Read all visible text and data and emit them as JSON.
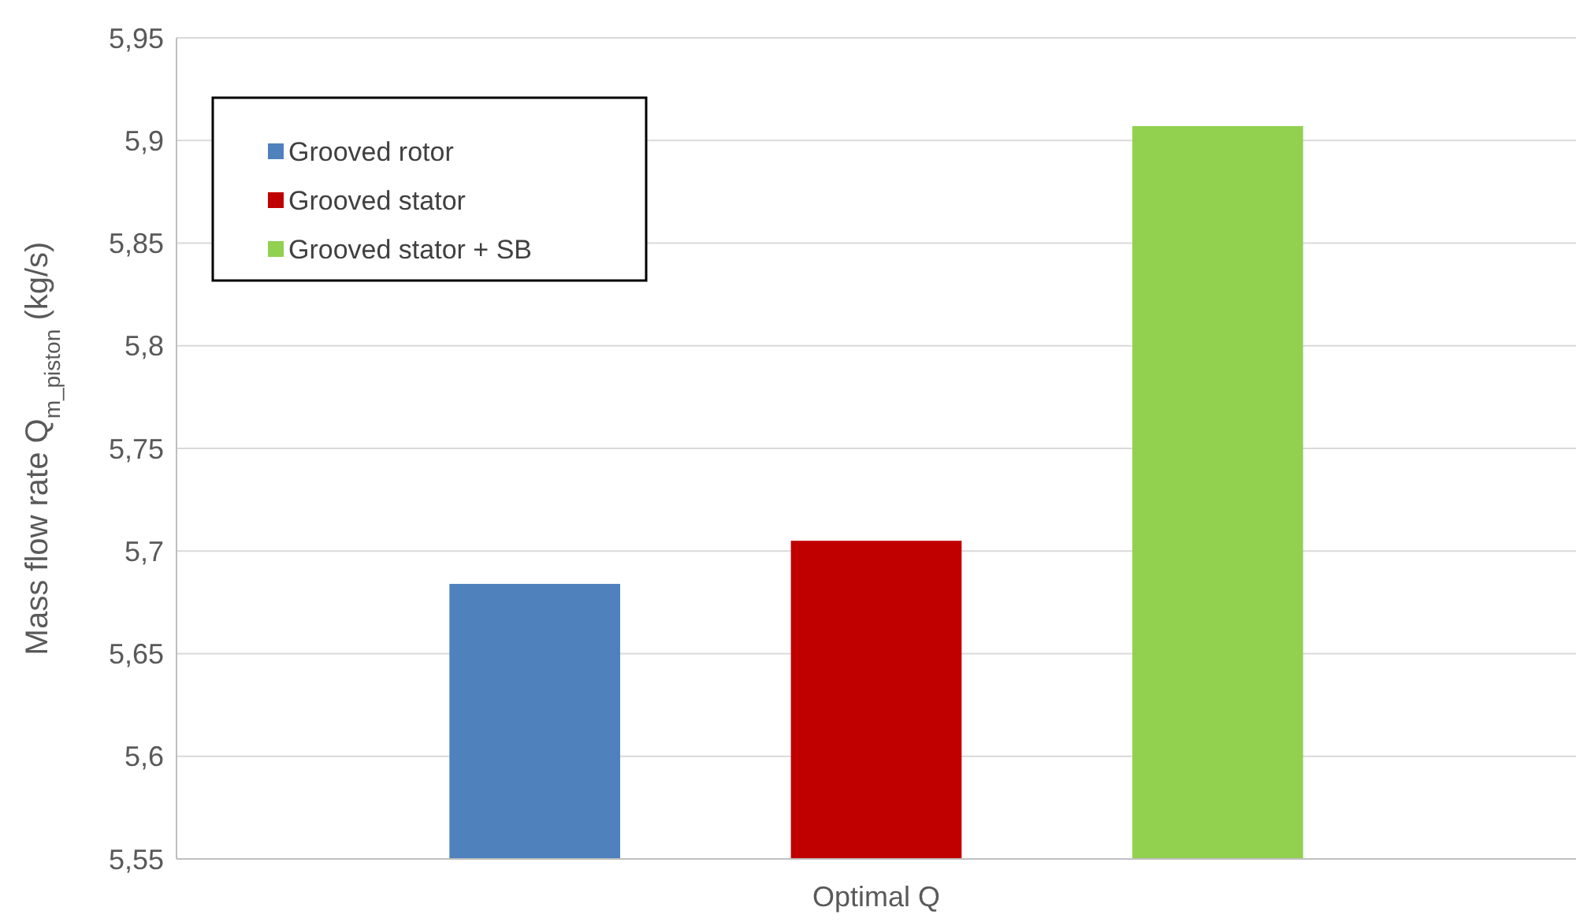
{
  "chart_data": {
    "type": "bar",
    "categories": [
      "Optimal Q"
    ],
    "ylabel": "Mass flow rate Q$_{m_piston}$ (kg/s)",
    "series": [
      {
        "name": "Grooved rotor",
        "color": "#4f81bd",
        "values": [
          5.684
        ]
      },
      {
        "name": "Grooved stator",
        "color": "#c00000",
        "values": [
          5.705
        ]
      },
      {
        "name": "Grooved stator + SB",
        "color": "#92d050",
        "values": [
          5.907
        ]
      }
    ],
    "ylim": [
      5.55,
      5.95
    ],
    "yticks": [
      {
        "value": 5.55,
        "label": "5,55"
      },
      {
        "value": 5.6,
        "label": "5,6"
      },
      {
        "value": 5.65,
        "label": "5,65"
      },
      {
        "value": 5.7,
        "label": "5,7"
      },
      {
        "value": 5.75,
        "label": "5,75"
      },
      {
        "value": 5.8,
        "label": "5,8"
      },
      {
        "value": 5.85,
        "label": "5,85"
      },
      {
        "value": 5.9,
        "label": "5,9"
      },
      {
        "value": 5.95,
        "label": "5,95"
      }
    ],
    "grid": "y",
    "legend": "top left"
  }
}
